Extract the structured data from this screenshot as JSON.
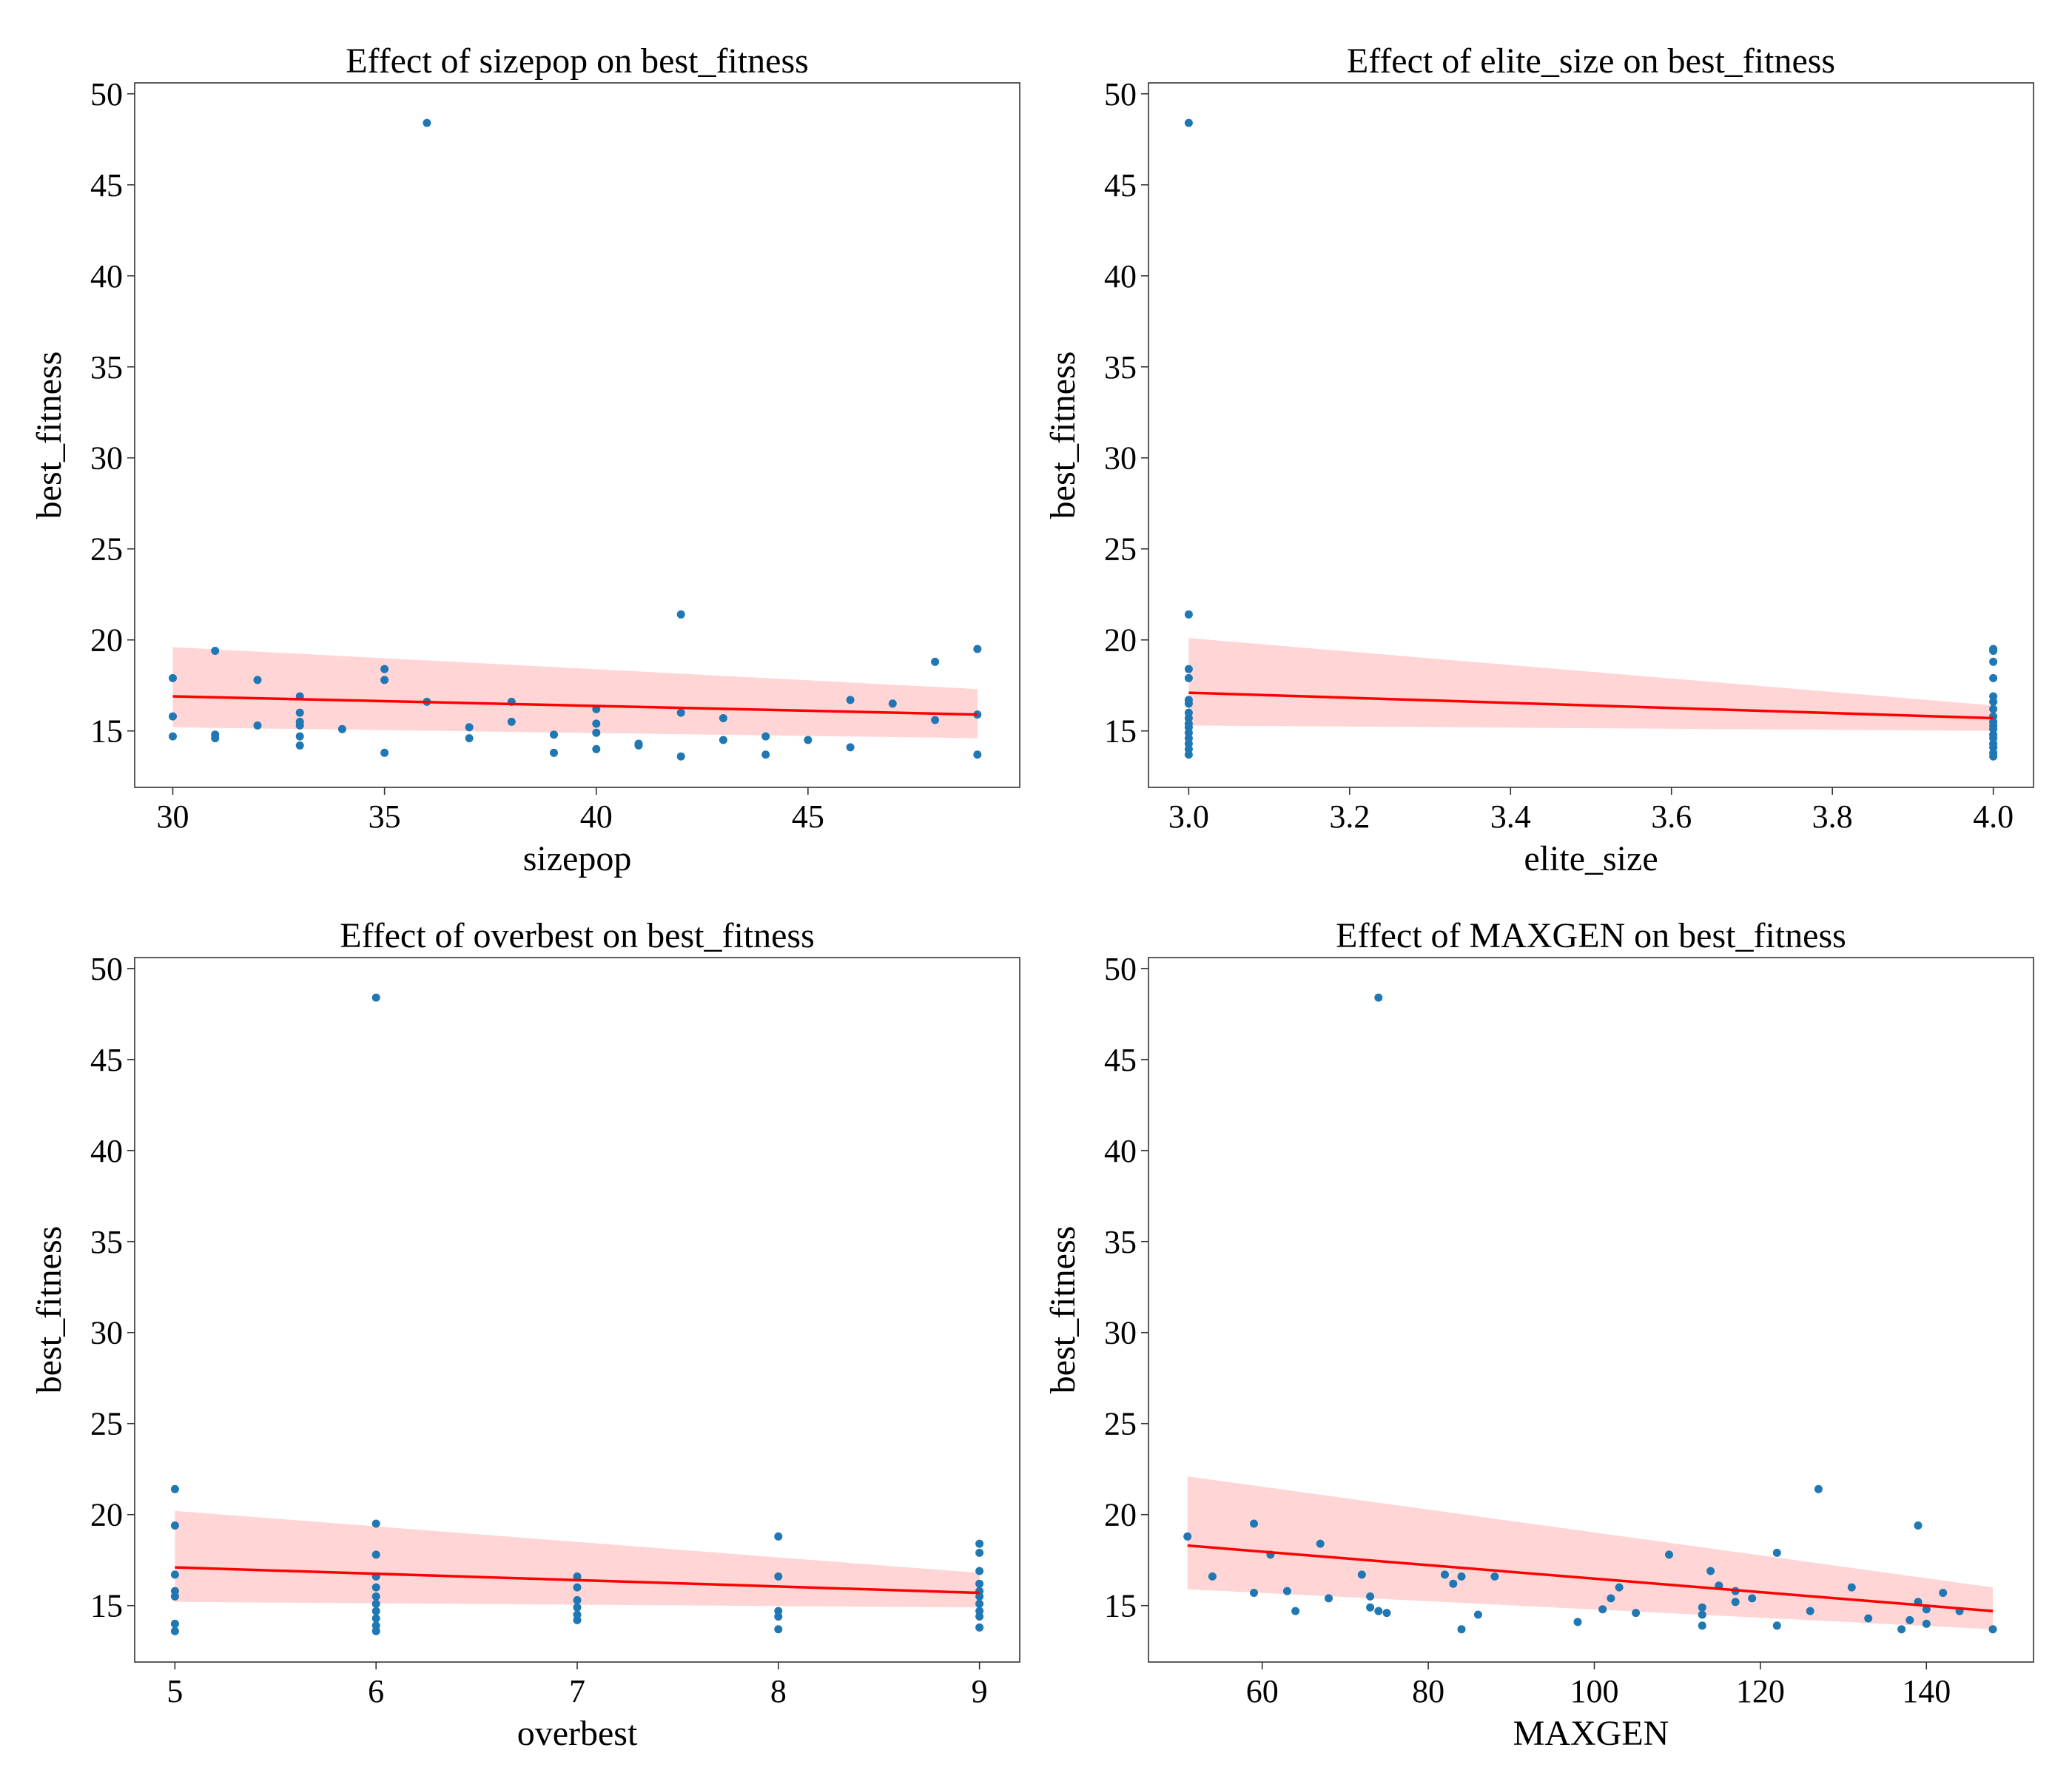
{
  "figure": {
    "colors": {
      "points": "#1f77b4",
      "line": "#ff0000",
      "band": "#ffb3b3"
    }
  },
  "chart_data": [
    {
      "type": "scatter",
      "title": "Effect of sizepop on best_fitness",
      "xlabel": "sizepop",
      "ylabel": "best_fitness",
      "xlim": [
        29.1,
        50.0
      ],
      "ylim": [
        11.9,
        50.6
      ],
      "xticks": [
        30,
        35,
        40,
        45
      ],
      "xtick_labels": [
        "30",
        "35",
        "40",
        "45"
      ],
      "yticks": [
        15,
        20,
        25,
        30,
        35,
        40,
        45,
        50
      ],
      "ytick_labels": [
        "15",
        "20",
        "25",
        "30",
        "35",
        "40",
        "45",
        "50"
      ],
      "points": [
        [
          30,
          17.9
        ],
        [
          30,
          15.8
        ],
        [
          30,
          14.7
        ],
        [
          31,
          19.4
        ],
        [
          31,
          14.8
        ],
        [
          31,
          14.6
        ],
        [
          32,
          17.8
        ],
        [
          32,
          15.3
        ],
        [
          33,
          16.9
        ],
        [
          33,
          16.0
        ],
        [
          33,
          15.5
        ],
        [
          33,
          15.3
        ],
        [
          33,
          14.7
        ],
        [
          33,
          14.2
        ],
        [
          34,
          15.1
        ],
        [
          35,
          18.4
        ],
        [
          35,
          17.8
        ],
        [
          35,
          13.8
        ],
        [
          36,
          48.4
        ],
        [
          36,
          16.6
        ],
        [
          37,
          15.2
        ],
        [
          37,
          14.6
        ],
        [
          38,
          16.6
        ],
        [
          38,
          15.5
        ],
        [
          39,
          14.8
        ],
        [
          39,
          13.8
        ],
        [
          40,
          16.2
        ],
        [
          40,
          15.4
        ],
        [
          40,
          14.9
        ],
        [
          40,
          14.0
        ],
        [
          41,
          14.3
        ],
        [
          41,
          14.2
        ],
        [
          42,
          21.4
        ],
        [
          42,
          16.0
        ],
        [
          42,
          13.6
        ],
        [
          43,
          15.7
        ],
        [
          43,
          14.5
        ],
        [
          44,
          14.7
        ],
        [
          44,
          13.7
        ],
        [
          45,
          14.5
        ],
        [
          46,
          16.7
        ],
        [
          46,
          14.1
        ],
        [
          47,
          16.5
        ],
        [
          48,
          18.8
        ],
        [
          48,
          15.6
        ],
        [
          49,
          19.5
        ],
        [
          49,
          15.9
        ],
        [
          49,
          13.7
        ]
      ],
      "regression": {
        "x": [
          30,
          49
        ],
        "y": [
          16.9,
          15.9
        ]
      },
      "ci_band": {
        "x": [
          30,
          49
        ],
        "upper": [
          19.6,
          17.3
        ],
        "lower": [
          15.2,
          14.6
        ]
      }
    },
    {
      "type": "scatter",
      "title": "Effect of elite_size on best_fitness",
      "xlabel": "elite_size",
      "ylabel": "best_fitness",
      "xlim": [
        2.95,
        4.05
      ],
      "ylim": [
        11.9,
        50.6
      ],
      "xticks": [
        3.0,
        3.2,
        3.4,
        3.6,
        3.8,
        4.0
      ],
      "xtick_labels": [
        "3.0",
        "3.2",
        "3.4",
        "3.6",
        "3.8",
        "4.0"
      ],
      "yticks": [
        15,
        20,
        25,
        30,
        35,
        40,
        45,
        50
      ],
      "ytick_labels": [
        "15",
        "20",
        "25",
        "30",
        "35",
        "40",
        "45",
        "50"
      ],
      "points": [
        [
          3,
          48.4
        ],
        [
          3,
          21.4
        ],
        [
          3,
          18.4
        ],
        [
          3,
          17.9
        ],
        [
          3,
          16.7
        ],
        [
          3,
          16.5
        ],
        [
          3,
          16.0
        ],
        [
          3,
          15.7
        ],
        [
          3,
          15.4
        ],
        [
          3,
          15.2
        ],
        [
          3,
          14.9
        ],
        [
          3,
          14.6
        ],
        [
          3,
          14.3
        ],
        [
          3,
          14.0
        ],
        [
          3,
          13.7
        ],
        [
          4,
          19.5
        ],
        [
          4,
          19.4
        ],
        [
          4,
          18.8
        ],
        [
          4,
          17.9
        ],
        [
          4,
          16.9
        ],
        [
          4,
          16.6
        ],
        [
          4,
          16.2
        ],
        [
          4,
          15.8
        ],
        [
          4,
          15.5
        ],
        [
          4,
          15.3
        ],
        [
          4,
          15.1
        ],
        [
          4,
          14.8
        ],
        [
          4,
          14.6
        ],
        [
          4,
          14.3
        ],
        [
          4,
          14.1
        ],
        [
          4,
          13.8
        ],
        [
          4,
          13.6
        ]
      ],
      "regression": {
        "x": [
          3.0,
          4.0
        ],
        "y": [
          17.1,
          15.7
        ]
      },
      "ci_band": {
        "x": [
          3.0,
          4.0
        ],
        "upper": [
          20.1,
          16.4
        ],
        "lower": [
          15.3,
          15.0
        ]
      }
    },
    {
      "type": "scatter",
      "title": "Effect of overbest on best_fitness",
      "xlabel": "overbest",
      "ylabel": "best_fitness",
      "xlim": [
        4.8,
        9.2
      ],
      "ylim": [
        11.9,
        50.6
      ],
      "xticks": [
        5,
        6,
        7,
        8,
        9
      ],
      "xtick_labels": [
        "5",
        "6",
        "7",
        "8",
        "9"
      ],
      "yticks": [
        15,
        20,
        25,
        30,
        35,
        40,
        45,
        50
      ],
      "ytick_labels": [
        "15",
        "20",
        "25",
        "30",
        "35",
        "40",
        "45",
        "50"
      ],
      "points": [
        [
          5,
          21.4
        ],
        [
          5,
          19.4
        ],
        [
          5,
          16.7
        ],
        [
          5,
          15.8
        ],
        [
          5,
          15.5
        ],
        [
          5,
          14.0
        ],
        [
          5,
          13.6
        ],
        [
          6,
          48.4
        ],
        [
          6,
          19.5
        ],
        [
          6,
          17.8
        ],
        [
          6,
          16.6
        ],
        [
          6,
          16.0
        ],
        [
          6,
          15.5
        ],
        [
          6,
          15.1
        ],
        [
          6,
          14.7
        ],
        [
          6,
          14.3
        ],
        [
          6,
          13.9
        ],
        [
          6,
          13.6
        ],
        [
          7,
          16.6
        ],
        [
          7,
          16.0
        ],
        [
          7,
          15.3
        ],
        [
          7,
          14.9
        ],
        [
          7,
          14.5
        ],
        [
          7,
          14.2
        ],
        [
          8,
          18.8
        ],
        [
          8,
          16.6
        ],
        [
          8,
          14.7
        ],
        [
          8,
          14.4
        ],
        [
          8,
          13.7
        ],
        [
          9,
          18.4
        ],
        [
          9,
          17.9
        ],
        [
          9,
          16.9
        ],
        [
          9,
          16.2
        ],
        [
          9,
          15.8
        ],
        [
          9,
          15.5
        ],
        [
          9,
          15.1
        ],
        [
          9,
          14.7
        ],
        [
          9,
          14.4
        ],
        [
          9,
          13.8
        ]
      ],
      "regression": {
        "x": [
          5,
          9
        ],
        "y": [
          17.1,
          15.7
        ]
      },
      "ci_band": {
        "x": [
          5,
          9
        ],
        "upper": [
          20.2,
          16.8
        ],
        "lower": [
          15.2,
          14.9
        ]
      }
    },
    {
      "type": "scatter",
      "title": "Effect of MAXGEN on best_fitness",
      "xlabel": "MAXGEN",
      "ylabel": "best_fitness",
      "xlim": [
        46.3,
        152.9
      ],
      "ylim": [
        11.9,
        50.6
      ],
      "xticks": [
        60,
        80,
        100,
        120,
        140
      ],
      "xtick_labels": [
        "60",
        "80",
        "100",
        "120",
        "140"
      ],
      "yticks": [
        15,
        20,
        25,
        30,
        35,
        40,
        45,
        50
      ],
      "ytick_labels": [
        "15",
        "20",
        "25",
        "30",
        "35",
        "40",
        "45",
        "50"
      ],
      "points": [
        [
          51,
          18.8
        ],
        [
          54,
          16.6
        ],
        [
          59,
          19.5
        ],
        [
          59,
          15.7
        ],
        [
          61,
          17.8
        ],
        [
          63,
          15.8
        ],
        [
          64,
          14.7
        ],
        [
          67,
          18.4
        ],
        [
          68,
          15.4
        ],
        [
          72,
          16.7
        ],
        [
          73,
          15.5
        ],
        [
          73,
          14.9
        ],
        [
          74,
          48.4
        ],
        [
          74,
          14.7
        ],
        [
          75,
          14.6
        ],
        [
          82,
          16.7
        ],
        [
          83,
          16.2
        ],
        [
          84,
          16.6
        ],
        [
          84,
          13.7
        ],
        [
          86,
          14.5
        ],
        [
          88,
          16.6
        ],
        [
          98,
          14.1
        ],
        [
          101,
          14.8
        ],
        [
          102,
          15.4
        ],
        [
          103,
          16.0
        ],
        [
          105,
          14.6
        ],
        [
          109,
          17.8
        ],
        [
          113,
          14.9
        ],
        [
          113,
          14.5
        ],
        [
          113,
          13.9
        ],
        [
          114,
          16.9
        ],
        [
          115,
          16.1
        ],
        [
          117,
          15.8
        ],
        [
          117,
          15.2
        ],
        [
          119,
          15.4
        ],
        [
          122,
          17.9
        ],
        [
          122,
          13.9
        ],
        [
          126,
          14.7
        ],
        [
          127,
          21.4
        ],
        [
          131,
          16.0
        ],
        [
          133,
          14.3
        ],
        [
          137,
          13.7
        ],
        [
          138,
          14.2
        ],
        [
          139,
          19.4
        ],
        [
          139,
          15.2
        ],
        [
          140,
          14.8
        ],
        [
          140,
          14.0
        ],
        [
          142,
          15.7
        ],
        [
          144,
          14.7
        ],
        [
          148,
          13.7
        ]
      ],
      "regression": {
        "x": [
          51,
          148
        ],
        "y": [
          18.3,
          14.7
        ]
      },
      "ci_band": {
        "x": [
          51,
          148
        ],
        "upper": [
          22.1,
          16.0
        ],
        "lower": [
          15.9,
          13.7
        ]
      }
    }
  ]
}
